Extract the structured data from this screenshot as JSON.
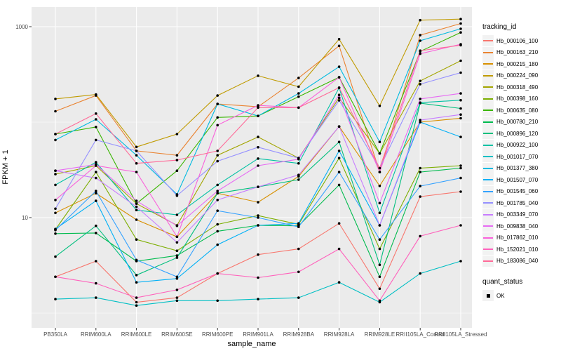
{
  "figure": {
    "colors": {
      "panel_background": "#EBEBEB",
      "gridline": "#FFFFFF",
      "tick_mark": "#333333",
      "tick_text": "#4D4D4D",
      "point": "#000000",
      "legend_key_background": "#F2F2F2"
    },
    "quant_status": {
      "title": "quant_status",
      "items": [
        {
          "label": "OK",
          "marker": "black-square"
        }
      ]
    }
  },
  "chart_data": {
    "type": "line",
    "title": "",
    "xlabel": "sample_name",
    "ylabel": "FPKM + 1",
    "y_scale": "log10",
    "ylim": [
      1,
      1585
    ],
    "y_ticks": [
      1000,
      10
    ],
    "y_minor_gridlines": [
      100,
      1
    ],
    "grid": true,
    "legend_position": "right",
    "legend_title": "tracking_id",
    "point_marker": "black dot on every data point (quant_status OK)",
    "categories": [
      "PB350LA",
      "RRIM600LA",
      "RRIM600LE",
      "RRIM600SE",
      "RRIM600PE",
      "RRIM901LA",
      "RRIM928BA",
      "RRIM928LA",
      "RRIM928LE",
      "RRII105LA_Control",
      "RRII105LA_Stressed"
    ],
    "series": [
      {
        "name": "Hb_000106_100",
        "color": "#F8766D",
        "values": [
          2.4,
          3.5,
          1.3,
          1.45,
          2.6,
          4.1,
          4.7,
          8.7,
          1.8,
          16.6,
          18.7
        ]
      },
      {
        "name": "Hb_000163_210",
        "color": "#EA8331",
        "values": [
          130,
          190,
          50,
          45,
          155,
          145,
          290,
          630,
          30,
          815,
          1080
        ]
      },
      {
        "name": "Hb_000215_180",
        "color": "#D89000",
        "values": [
          11.2,
          18,
          9.5,
          6.3,
          18,
          14.5,
          27,
          90,
          21.5,
          100,
          110
        ]
      },
      {
        "name": "Hb_000224_090",
        "color": "#C09B00",
        "values": [
          175,
          195,
          55,
          75,
          190,
          306,
          235,
          740,
          148,
          1170,
          1200
        ]
      },
      {
        "name": "Hb_000318_490",
        "color": "#A3A500",
        "values": [
          28.5,
          35,
          14,
          8.3,
          45,
          70,
          42,
          180,
          47,
          270,
          440
        ]
      },
      {
        "name": "Hb_000398_160",
        "color": "#7CAE00",
        "values": [
          7.5,
          30,
          5.9,
          4.5,
          8.5,
          10.5,
          8.5,
          42,
          4.7,
          33,
          35
        ]
      },
      {
        "name": "Hb_000635_080",
        "color": "#39B600",
        "values": [
          75,
          89,
          14,
          31,
          112,
          116,
          185,
          295,
          47,
          550,
          870
        ]
      },
      {
        "name": "Hb_000780_210",
        "color": "#00BB4E",
        "values": [
          6.8,
          6.9,
          3.5,
          4.0,
          7.2,
          8.3,
          8.2,
          22,
          2.4,
          30,
          33
        ]
      },
      {
        "name": "Hb_000896_120",
        "color": "#00BF7D",
        "values": [
          3.9,
          8.2,
          2.5,
          3.8,
          18,
          21,
          25,
          62,
          3.2,
          158,
          139
        ]
      },
      {
        "name": "Hb_000922_100",
        "color": "#00C1A3",
        "values": [
          22,
          38,
          12,
          10.7,
          22,
          41.5,
          37,
          229,
          11.2,
          160,
          170
        ]
      },
      {
        "name": "Hb_001017_070",
        "color": "#00BFC4",
        "values": [
          1.4,
          1.45,
          1.2,
          1.35,
          1.35,
          1.4,
          1.45,
          2.1,
          1.3,
          2.6,
          3.5
        ]
      },
      {
        "name": "Hb_001377_380",
        "color": "#00BAE0",
        "values": [
          65,
          107,
          45,
          17.5,
          155,
          116,
          200,
          380,
          62,
          713,
          950
        ]
      },
      {
        "name": "Hb_001507_070",
        "color": "#00B0F6",
        "values": [
          7.6,
          15,
          2.1,
          2.3,
          5.2,
          8.3,
          8.7,
          50,
          8.3,
          100,
          70
        ]
      },
      {
        "name": "Hb_001545_060",
        "color": "#35A2FF",
        "values": [
          7.4,
          19,
          3.6,
          2.4,
          11.8,
          10,
          8.0,
          30,
          5.9,
          21.4,
          26
        ]
      },
      {
        "name": "Hb_001785_040",
        "color": "#9590FF",
        "values": [
          12.4,
          65,
          50,
          17,
          39,
          54.6,
          42,
          169,
          33,
          250,
          330
        ]
      },
      {
        "name": "Hb_003349_070",
        "color": "#C77CFF",
        "values": [
          31,
          26,
          13,
          5.5,
          15.3,
          21,
          28,
          90,
          8.3,
          105,
          120
        ]
      },
      {
        "name": "Hb_009838_040",
        "color": "#E76BF3",
        "values": [
          31,
          36,
          15,
          8.2,
          19,
          35,
          41,
          193,
          14.2,
          175,
          200
        ]
      },
      {
        "name": "Hb_017862_010",
        "color": "#FA62DB",
        "values": [
          15.3,
          35,
          30,
          6.3,
          93,
          150,
          142,
          295,
          30,
          520,
          655
        ]
      },
      {
        "name": "Hb_152021_010",
        "color": "#FF62BC",
        "values": [
          2.4,
          2.05,
          1.45,
          1.75,
          2.6,
          2.35,
          2.7,
          4.7,
          1.35,
          6.4,
          8.3
        ]
      },
      {
        "name": "Hb_183086_040",
        "color": "#FF6A98",
        "values": [
          75,
          123,
          37,
          40,
          50,
          142,
          142,
          230,
          33,
          560,
          640
        ]
      }
    ]
  }
}
